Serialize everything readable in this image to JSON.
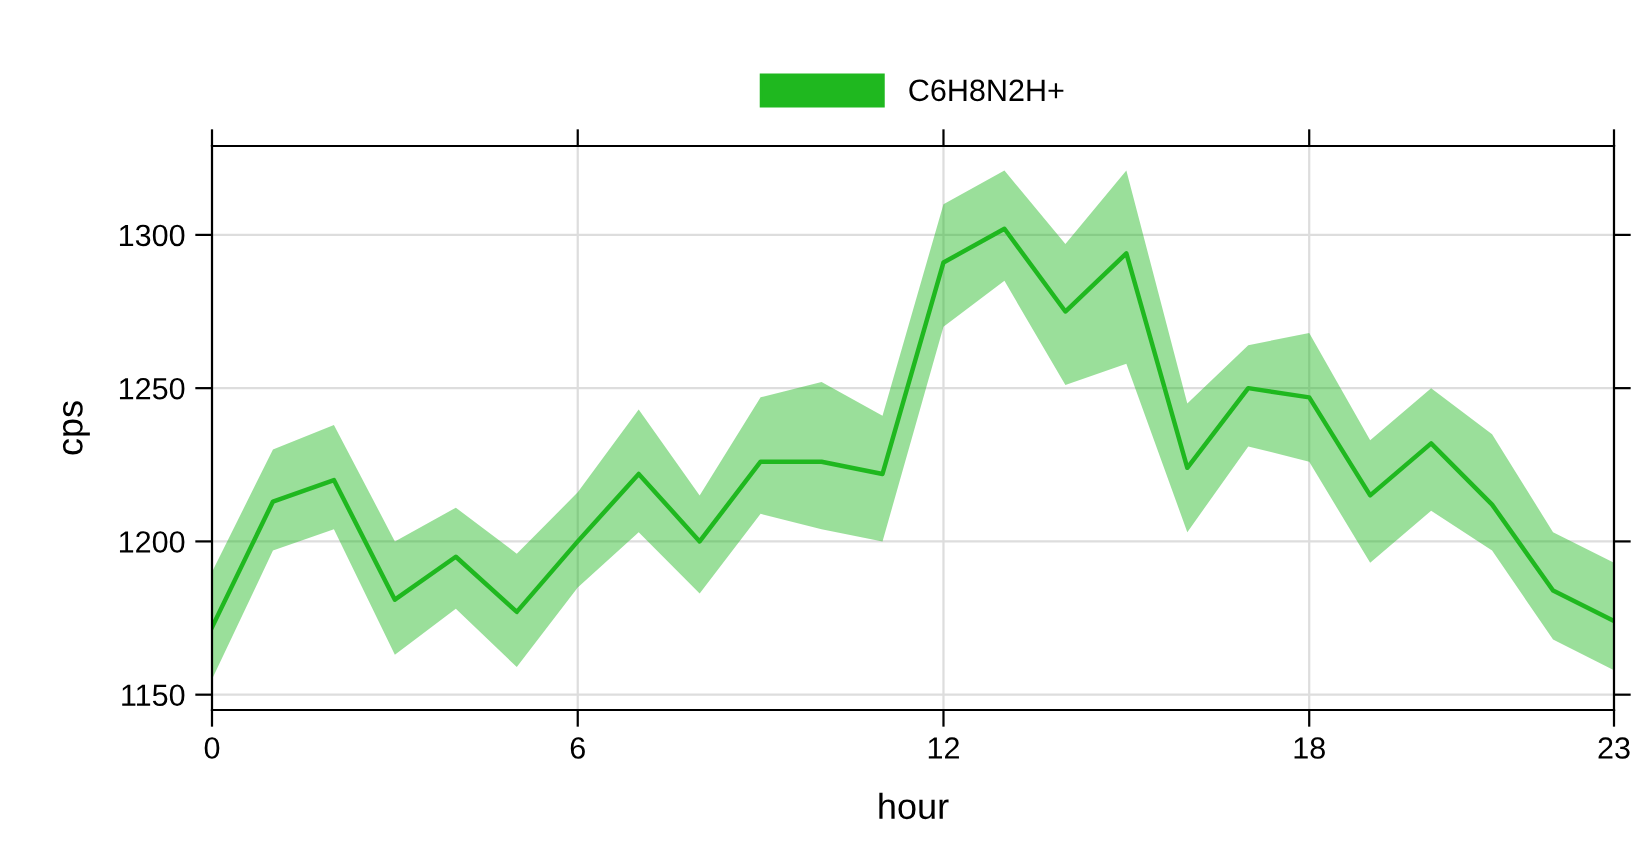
{
  "chart_data": {
    "type": "line",
    "xlabel": "hour",
    "ylabel": "cps",
    "x": [
      0,
      1,
      2,
      3,
      4,
      5,
      6,
      7,
      8,
      9,
      10,
      11,
      12,
      13,
      14,
      15,
      16,
      17,
      18,
      19,
      20,
      21,
      22,
      23
    ],
    "series": [
      {
        "name": "C6H8N2H+",
        "color": "#1fb81f",
        "values": [
          1172,
          1213,
          1220,
          1181,
          1195,
          1177,
          1200,
          1222,
          1200,
          1226,
          1226,
          1222,
          1291,
          1302,
          1275,
          1294,
          1224,
          1250,
          1247,
          1215,
          1232,
          1212,
          1184,
          1174
        ],
        "upper": [
          1190,
          1230,
          1238,
          1200,
          1211,
          1196,
          1216,
          1243,
          1215,
          1247,
          1252,
          1241,
          1310,
          1321,
          1297,
          1321,
          1245,
          1264,
          1268,
          1233,
          1250,
          1235,
          1203,
          1193
        ],
        "lower": [
          1155,
          1197,
          1204,
          1163,
          1178,
          1159,
          1185,
          1203,
          1183,
          1209,
          1204,
          1200,
          1270,
          1285,
          1251,
          1258,
          1203,
          1231,
          1226,
          1193,
          1210,
          1197,
          1168,
          1158
        ]
      }
    ],
    "xlim": [
      0,
      23
    ],
    "ylim": [
      1145,
      1329
    ],
    "xticks": [
      0,
      6,
      12,
      18,
      23
    ],
    "yticks": [
      1150,
      1200,
      1250,
      1300
    ],
    "grid": true,
    "legend": "top",
    "marker": "none",
    "line_style": "solid"
  }
}
